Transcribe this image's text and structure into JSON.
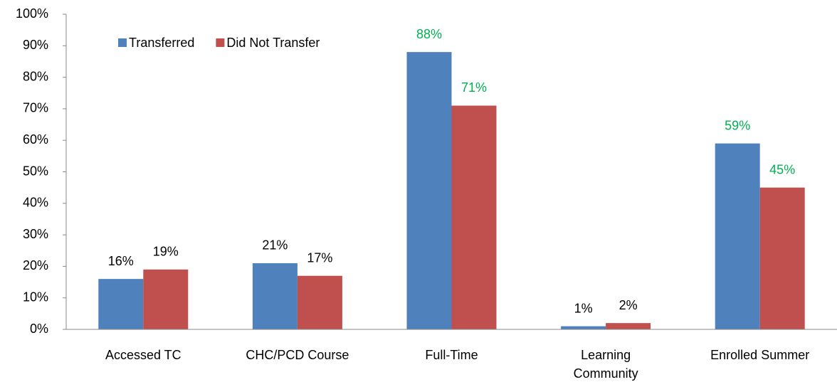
{
  "chart_data": {
    "type": "bar",
    "categories": [
      "Accessed TC",
      "CHC/PCD Course",
      "Full-Time",
      "Learning Community",
      "Enrolled Summer"
    ],
    "series": [
      {
        "name": "Transferred",
        "color": "#4f81bd",
        "values": [
          16,
          21,
          88,
          1,
          59
        ],
        "value_labels": [
          "16%",
          "21%",
          "88%",
          "1%",
          "59%"
        ],
        "label_colors": [
          "#000000",
          "#000000",
          "#00b050",
          "#000000",
          "#00b050"
        ]
      },
      {
        "name": "Did Not Transfer",
        "color": "#c0504d",
        "values": [
          19,
          17,
          71,
          2,
          45
        ],
        "value_labels": [
          "19%",
          "17%",
          "71%",
          "2%",
          "45%"
        ],
        "label_colors": [
          "#000000",
          "#000000",
          "#00b050",
          "#000000",
          "#00b050"
        ]
      }
    ],
    "ylim": [
      0,
      100
    ],
    "yticks": [
      {
        "value": 0,
        "label": "0%"
      },
      {
        "value": 10,
        "label": "10%"
      },
      {
        "value": 20,
        "label": "20%"
      },
      {
        "value": 30,
        "label": "30%"
      },
      {
        "value": 40,
        "label": "40%"
      },
      {
        "value": 50,
        "label": "50%"
      },
      {
        "value": 60,
        "label": "60%"
      },
      {
        "value": 70,
        "label": "70%"
      },
      {
        "value": 80,
        "label": "80%"
      },
      {
        "value": 90,
        "label": "90%"
      },
      {
        "value": 100,
        "label": "100%"
      }
    ],
    "grid": false,
    "legend": "top-left"
  }
}
